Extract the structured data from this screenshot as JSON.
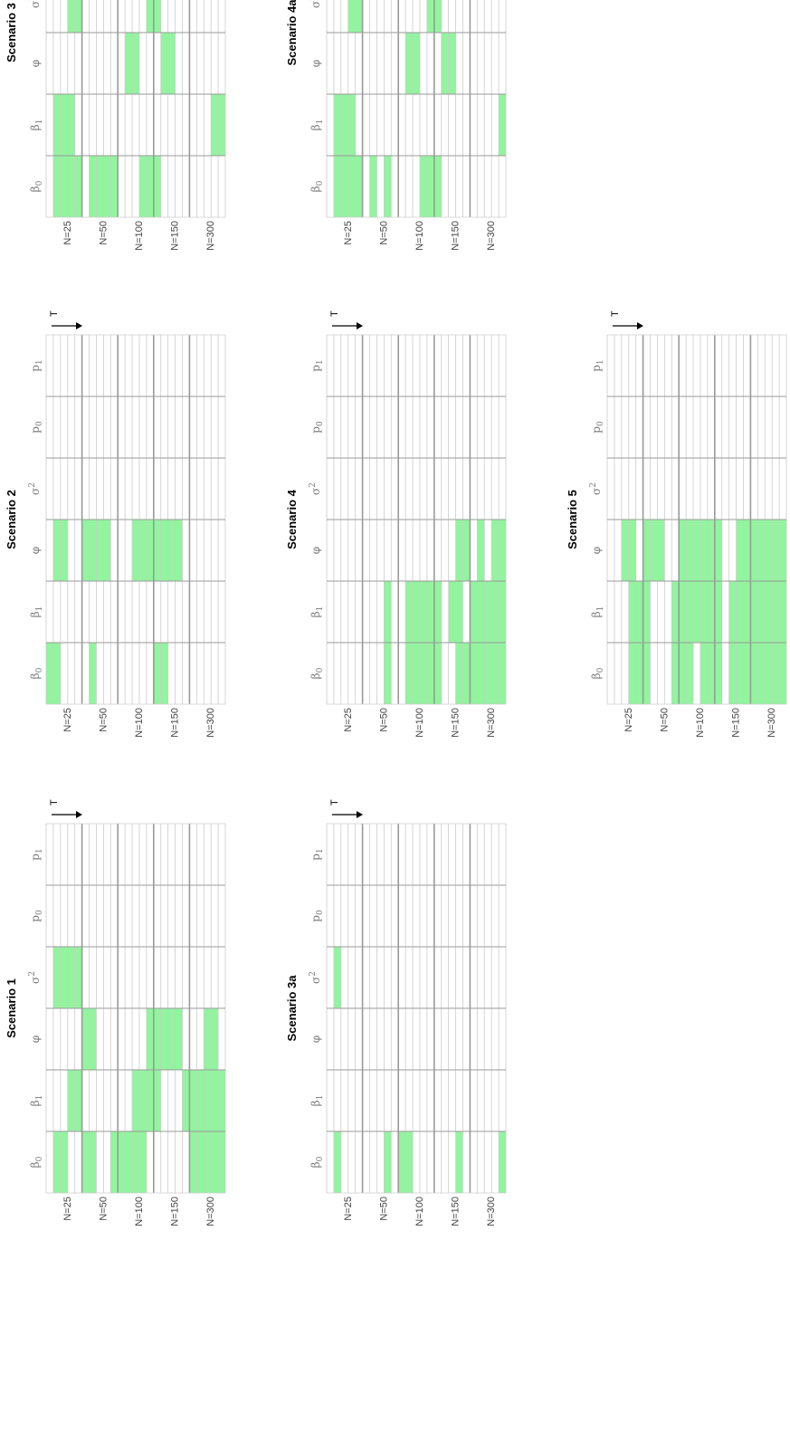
{
  "chart_data": {
    "type": "heatmap",
    "description_note": "Grid of panels (rotated 90 deg). Rows = sample sizes N (each with 5 T sub-rows), columns = parameters. Green cells = flagged.",
    "row_groups": [
      "N=25",
      "N=50",
      "N=100",
      "N=150",
      "N=300"
    ],
    "parameters": [
      {
        "key": "b0",
        "label": "β",
        "sub": "0",
        "sup": ""
      },
      {
        "key": "b1",
        "label": "β",
        "sub": "1",
        "sup": ""
      },
      {
        "key": "phi",
        "label": "φ",
        "sub": "",
        "sup": ""
      },
      {
        "key": "s2",
        "label": "σ",
        "sub": "",
        "sup": "2"
      },
      {
        "key": "p0",
        "label": "p",
        "sub": "0",
        "sup": ""
      },
      {
        "key": "p1",
        "label": "p",
        "sub": "1",
        "sup": ""
      }
    ],
    "t_arrow_label": "T",
    "highlight_color": "#90f59d",
    "grid_color": "#cccccc",
    "group_line_color": "#9a9a9a",
    "panels": [
      {
        "title": "Scenario 1",
        "green": [
          {
            "param": "b0",
            "rows": [
              2,
              3,
              6,
              7,
              10,
              11,
              12,
              13,
              14,
              21,
              22,
              23,
              24,
              25
            ]
          },
          {
            "param": "b1",
            "rows": [
              4,
              5,
              13,
              14,
              15,
              16,
              20,
              21,
              22,
              23,
              24,
              25
            ]
          },
          {
            "param": "phi",
            "rows": [
              6,
              7,
              15,
              16,
              17,
              18,
              19,
              23,
              24
            ]
          },
          {
            "param": "s2",
            "rows": [
              2,
              3,
              4,
              5
            ]
          }
        ]
      },
      {
        "title": "Scenario 2",
        "green": [
          {
            "param": "b0",
            "rows": [
              1,
              2,
              7,
              16,
              17
            ]
          },
          {
            "param": "phi",
            "rows": [
              2,
              3,
              6,
              7,
              8,
              9,
              13,
              14,
              15,
              16,
              17,
              18,
              19
            ]
          }
        ]
      },
      {
        "title": "Scenario 3",
        "green": [
          {
            "param": "b0",
            "rows": [
              2,
              3,
              4,
              5,
              7,
              8,
              9,
              10,
              14,
              15,
              16
            ]
          },
          {
            "param": "b1",
            "rows": [
              2,
              3,
              4,
              24,
              25
            ]
          },
          {
            "param": "phi",
            "rows": [
              12,
              13,
              17,
              18
            ]
          },
          {
            "param": "s2",
            "rows": [
              4,
              5,
              15,
              16
            ]
          }
        ]
      },
      {
        "title": "Scenario 3a",
        "green": [
          {
            "param": "b0",
            "rows": [
              2,
              9,
              11,
              12,
              19,
              25
            ]
          },
          {
            "param": "s2",
            "rows": [
              2
            ]
          }
        ]
      },
      {
        "title": "Scenario 4",
        "green": [
          {
            "param": "b0",
            "rows": [
              9,
              12,
              13,
              14,
              15,
              16,
              19,
              20,
              21,
              22,
              23,
              24,
              25
            ]
          },
          {
            "param": "b1",
            "rows": [
              9,
              12,
              13,
              14,
              15,
              16,
              18,
              19,
              21,
              22,
              23,
              24,
              25
            ]
          },
          {
            "param": "phi",
            "rows": [
              19,
              20,
              22,
              24,
              25
            ]
          }
        ]
      },
      {
        "title": "Scenario 4a",
        "green": [
          {
            "param": "b0",
            "rows": [
              2,
              3,
              4,
              5,
              7,
              9,
              14,
              15,
              16
            ]
          },
          {
            "param": "b1",
            "rows": [
              2,
              3,
              4,
              25
            ]
          },
          {
            "param": "phi",
            "rows": [
              12,
              13,
              17,
              18
            ]
          },
          {
            "param": "s2",
            "rows": [
              4,
              5,
              15,
              16
            ]
          }
        ]
      },
      {
        "title": "Scenario 5",
        "green": [
          {
            "param": "b0",
            "rows": [
              4,
              5,
              6,
              10,
              11,
              12,
              14,
              15,
              16,
              18,
              19,
              20,
              21,
              22,
              23,
              24,
              25
            ]
          },
          {
            "param": "b1",
            "rows": [
              4,
              5,
              6,
              10,
              11,
              12,
              13,
              14,
              15,
              16,
              18,
              19,
              20,
              21,
              22,
              23,
              24,
              25
            ]
          },
          {
            "param": "phi",
            "rows": [
              3,
              4,
              6,
              7,
              8,
              11,
              12,
              13,
              14,
              15,
              16,
              19,
              20,
              21,
              22,
              23,
              24,
              25
            ]
          }
        ]
      }
    ]
  }
}
